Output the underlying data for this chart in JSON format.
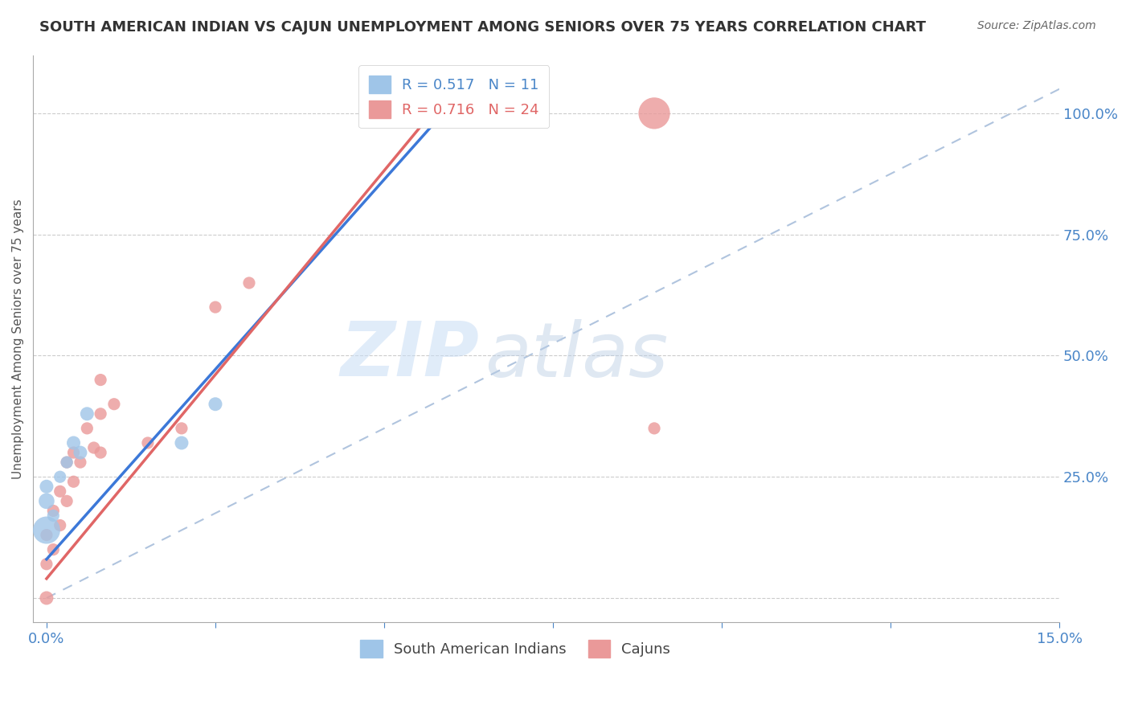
{
  "title": "SOUTH AMERICAN INDIAN VS CAJUN UNEMPLOYMENT AMONG SENIORS OVER 75 YEARS CORRELATION CHART",
  "source": "Source: ZipAtlas.com",
  "ylabel": "Unemployment Among Seniors over 75 years",
  "xlabel": "",
  "xlim": [
    0.0,
    0.15
  ],
  "ylim": [
    -0.05,
    1.12
  ],
  "xticks": [
    0.0,
    0.025,
    0.05,
    0.075,
    0.1,
    0.125,
    0.15
  ],
  "xticklabels": [
    "0.0%",
    "",
    "",
    "",
    "",
    "",
    "15.0%"
  ],
  "ytick_positions": [
    0.0,
    0.25,
    0.5,
    0.75,
    1.0
  ],
  "yticklabels": [
    "",
    "25.0%",
    "50.0%",
    "75.0%",
    "100.0%"
  ],
  "legend_r1": "R = 0.517",
  "legend_n1": "N = 11",
  "legend_r2": "R = 0.716",
  "legend_n2": "N = 24",
  "watermark_zip": "ZIP",
  "watermark_atlas": "atlas",
  "blue_color": "#9fc5e8",
  "pink_color": "#ea9999",
  "blue_line_color": "#3c78d8",
  "pink_line_color": "#e06666",
  "dashed_line_color": "#b0c4de",
  "grid_color": "#cccccc",
  "axis_color": "#aaaaaa",
  "title_color": "#333333",
  "label_color": "#4a86c8",
  "south_american_indians_x": [
    0.0,
    0.0,
    0.0,
    0.001,
    0.002,
    0.003,
    0.004,
    0.005,
    0.006,
    0.02,
    0.025
  ],
  "south_american_indians_y": [
    0.14,
    0.2,
    0.23,
    0.17,
    0.25,
    0.28,
    0.32,
    0.3,
    0.38,
    0.32,
    0.4
  ],
  "south_american_indians_sizes": [
    600,
    200,
    150,
    120,
    120,
    120,
    150,
    150,
    150,
    150,
    150
  ],
  "cajuns_x": [
    0.0,
    0.0,
    0.0,
    0.001,
    0.001,
    0.002,
    0.002,
    0.003,
    0.003,
    0.004,
    0.004,
    0.005,
    0.006,
    0.007,
    0.008,
    0.008,
    0.008,
    0.01,
    0.015,
    0.02,
    0.025,
    0.03,
    0.09,
    0.09
  ],
  "cajuns_y": [
    0.0,
    0.07,
    0.13,
    0.1,
    0.18,
    0.15,
    0.22,
    0.2,
    0.28,
    0.24,
    0.3,
    0.28,
    0.35,
    0.31,
    0.3,
    0.38,
    0.45,
    0.4,
    0.32,
    0.35,
    0.6,
    0.65,
    0.35,
    1.0
  ],
  "cajuns_sizes": [
    150,
    120,
    120,
    120,
    120,
    120,
    120,
    120,
    120,
    120,
    120,
    120,
    120,
    120,
    120,
    120,
    120,
    120,
    120,
    120,
    120,
    120,
    120,
    800
  ],
  "sai_line_x": [
    0.0,
    0.06
  ],
  "sai_line_y": [
    0.08,
    1.02
  ],
  "cajun_line_x": [
    0.0,
    0.06
  ],
  "cajun_line_y": [
    0.04,
    1.05
  ],
  "dash_line_x": [
    0.0,
    0.15
  ],
  "dash_line_y": [
    0.0,
    1.05
  ]
}
